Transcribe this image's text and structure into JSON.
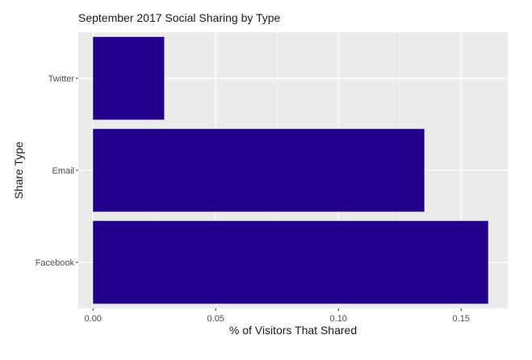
{
  "chart_data": {
    "type": "bar",
    "orientation": "horizontal",
    "title": "September 2017 Social Sharing by Type",
    "xlabel": "% of Visitors That Shared",
    "ylabel": "Share Type",
    "categories": [
      "Facebook",
      "Email",
      "Twitter"
    ],
    "values": [
      0.161,
      0.135,
      0.029
    ],
    "xlim": [
      -0.006,
      0.169
    ],
    "xticks": [
      0.0,
      0.05,
      0.1,
      0.15
    ],
    "xtick_labels": [
      "0.00",
      "0.05",
      "0.10",
      "0.15"
    ],
    "grid": true,
    "legend": "none",
    "colors": {
      "bar": "#22008b",
      "panel": "#ebebeb",
      "grid_major": "#ffffff",
      "grid_minor": "#f4f4f4",
      "axis_text": "#4d4d4d",
      "title_text": "#1a1a1a"
    }
  }
}
